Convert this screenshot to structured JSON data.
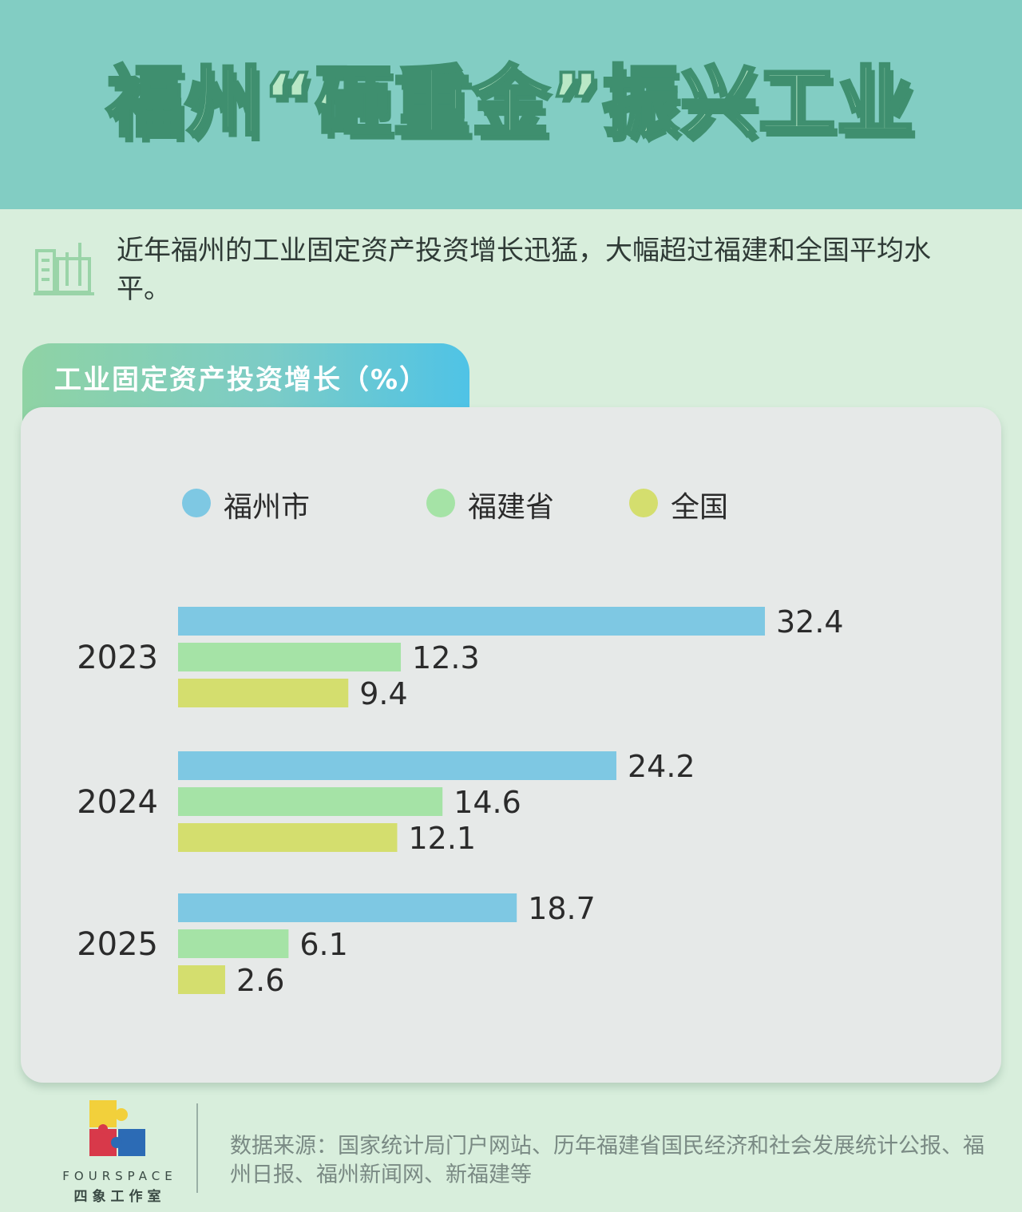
{
  "title": "福州“砸重金”振兴工业",
  "intro": "近年福州的工业固定资产投资增长迅猛，大幅超过福建和全国平均水平。",
  "chart_data": {
    "type": "bar",
    "orientation": "horizontal",
    "title": "工业固定资产投资增长（%）",
    "categories": [
      "2023",
      "2024",
      "2025"
    ],
    "series": [
      {
        "name": "福州市",
        "color": "#7ec8e3",
        "values": [
          32.4,
          24.2,
          18.7
        ]
      },
      {
        "name": "福建省",
        "color": "#a5e3a6",
        "values": [
          12.3,
          14.6,
          6.1
        ]
      },
      {
        "name": "全国",
        "color": "#d4de6e",
        "values": [
          9.4,
          12.1,
          2.6
        ]
      }
    ],
    "value_labels": [
      [
        "32.4",
        "24.2",
        "18.7"
      ],
      [
        "12.3",
        "14.6",
        "6.1"
      ],
      [
        "9.4",
        "12.1",
        "2.6"
      ]
    ],
    "legend_position": "top",
    "grid": false,
    "xlim": [
      0,
      40
    ]
  },
  "logo": {
    "en": "FOURSPACE",
    "cn": "四象工作室"
  },
  "source": "数据来源：国家统计局门户网站、历年福建省国民经济和社会发展统计公报、福州日报、福州新闻网、新福建等"
}
